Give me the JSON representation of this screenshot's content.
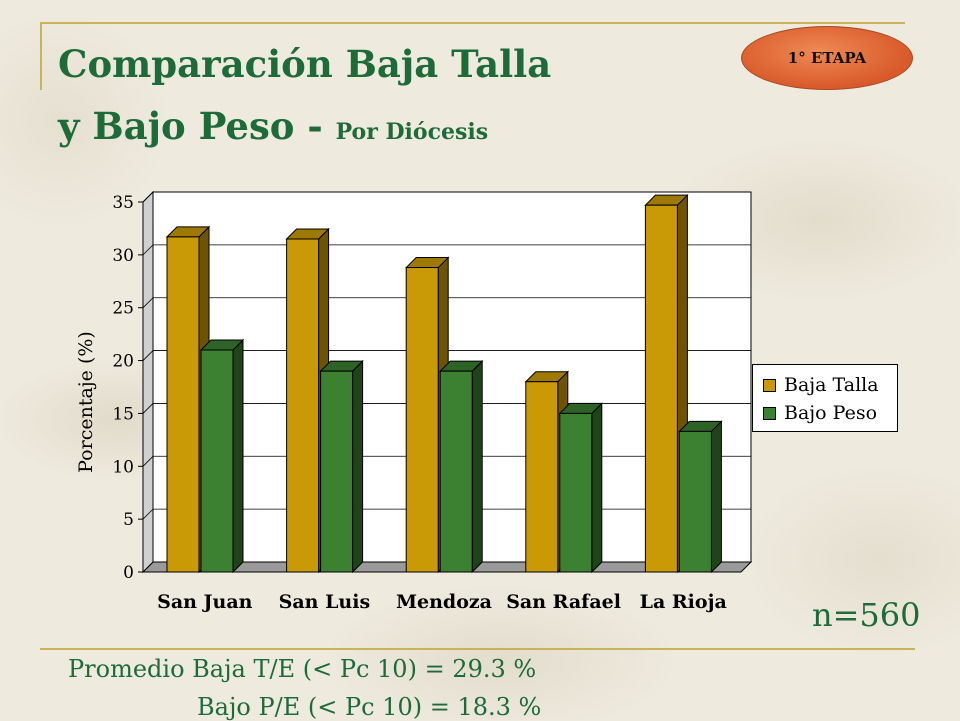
{
  "header": {
    "title_line1": "Comparación Baja Talla",
    "title_line2": "y Bajo Peso - ",
    "title_line2_small": "Por  Diócesis",
    "badge": "1° ETAPA"
  },
  "colors": {
    "baja_talla": "#c99a06",
    "bajo_peso": "#3c8032",
    "title_green": "#1e6b3a"
  },
  "chart_data": {
    "type": "bar",
    "categories": [
      "San Juan",
      "San Luis",
      "Mendoza",
      "San Rafael",
      "La Rioja"
    ],
    "series": [
      {
        "name": "Baja Talla",
        "values": [
          31.7,
          31.5,
          28.8,
          18.0,
          34.7
        ]
      },
      {
        "name": "Bajo Peso",
        "values": [
          21.0,
          19.0,
          19.0,
          15.0,
          13.3
        ]
      }
    ],
    "yticks": [
      "0",
      "5",
      "10",
      "15",
      "20",
      "25",
      "30",
      "35"
    ],
    "ylabel": "Porcentaje (%)",
    "ylim": [
      0,
      35
    ],
    "grid": true,
    "legend": "right"
  },
  "notes": {
    "n": "n=560",
    "line1": "Promedio Baja T/E (< Pc 10) = 29.3 %",
    "line2": "Bajo P/E (< Pc 10) = 18.3 %"
  }
}
